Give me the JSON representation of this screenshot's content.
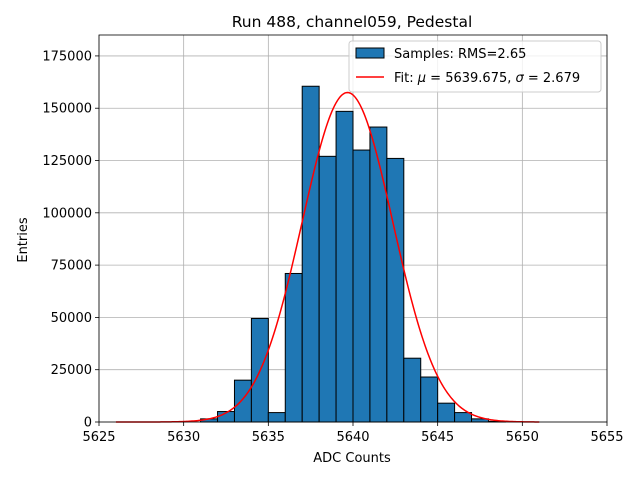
{
  "chart_data": {
    "type": "bar",
    "title": "Run 488, channel059, Pedestal",
    "xlabel": "ADC Counts",
    "ylabel": "Entries",
    "xlim": [
      5625,
      5655
    ],
    "ylim": [
      0,
      185000
    ],
    "x_ticks": [
      5625,
      5630,
      5635,
      5640,
      5645,
      5650,
      5655
    ],
    "y_ticks": [
      0,
      25000,
      50000,
      75000,
      100000,
      125000,
      150000,
      175000
    ],
    "grid": true,
    "legend_position": "top-right",
    "histogram": {
      "name": "Samples: RMS=2.65",
      "color": "#1f77b4",
      "edgecolor": "#000000",
      "bin_edges": [
        5631,
        5632,
        5633,
        5634,
        5635,
        5636,
        5637,
        5638,
        5639,
        5640,
        5641,
        5642,
        5643,
        5644,
        5645,
        5646,
        5647,
        5648,
        5649
      ],
      "counts": [
        1500,
        5000,
        20000,
        49500,
        4500,
        71000,
        160500,
        127000,
        148500,
        130000,
        141000,
        126000,
        30500,
        21500,
        9000,
        4500,
        1500,
        300
      ]
    },
    "fit": {
      "legend_prefix": "Fit: ",
      "mu_symbol": "μ",
      "mu_text": " = 5639.675, ",
      "sigma_symbol": "σ",
      "sigma_text": " = 2.679",
      "color": "#ff0000",
      "mu": 5639.675,
      "sigma": 2.679,
      "amplitude": 157500,
      "x_range": [
        5626,
        5651
      ]
    }
  }
}
